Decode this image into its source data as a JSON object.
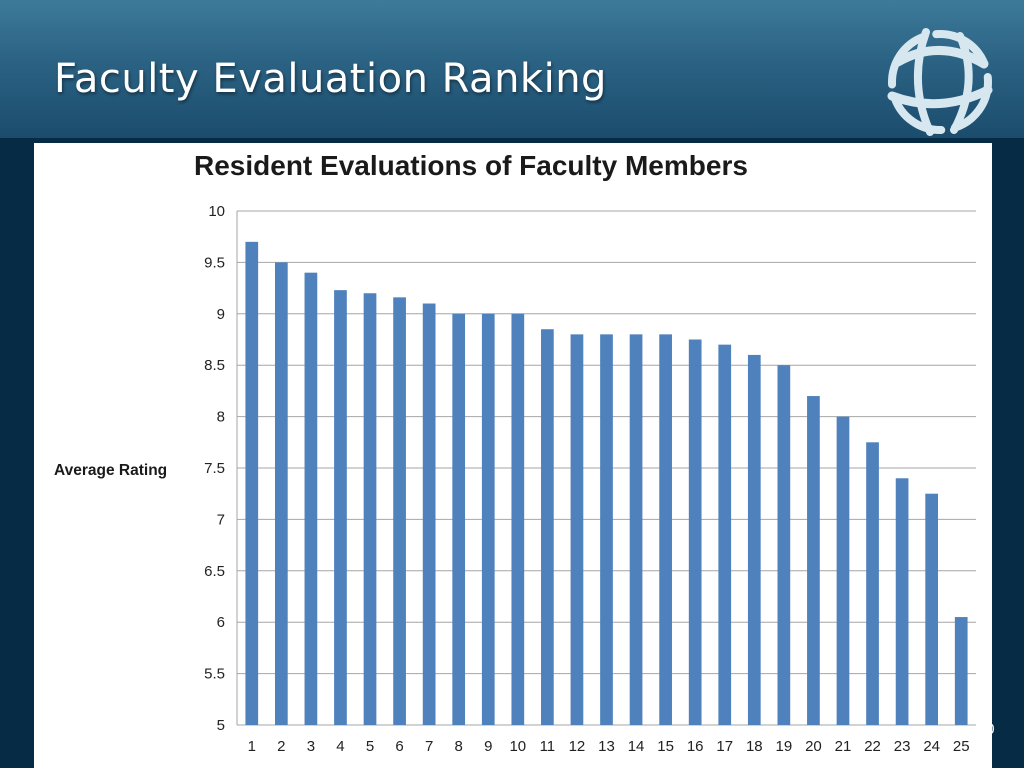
{
  "slide": {
    "title": "Faculty Evaluation Ranking",
    "logo_icon": "globe-logo-icon"
  },
  "colors": {
    "header_top": "#3d7a9a",
    "header_bottom": "#1b4c6d",
    "band": "#062c45",
    "bar": "#4f81bd",
    "gridline": "#a6a6a6"
  },
  "chart_data": {
    "type": "bar",
    "title": "Resident Evaluations of Faculty Members",
    "xlabel": "",
    "ylabel": "Average Rating",
    "ylim": [
      5,
      10
    ],
    "yticks": [
      5,
      5.5,
      6,
      6.5,
      7,
      7.5,
      8,
      8.5,
      9,
      9.5,
      10
    ],
    "ytick_labels": [
      "5",
      "5.5",
      "6",
      "6.5",
      "7",
      "7.5",
      "8",
      "8.5",
      "9",
      "9.5",
      "10"
    ],
    "grid": true,
    "legend": "none",
    "categories": [
      "1",
      "2",
      "3",
      "4",
      "5",
      "6",
      "7",
      "8",
      "9",
      "10",
      "11",
      "12",
      "13",
      "14",
      "15",
      "16",
      "17",
      "18",
      "19",
      "20",
      "21",
      "22",
      "23",
      "24",
      "25"
    ],
    "values": [
      9.7,
      9.5,
      9.4,
      9.23,
      9.2,
      9.16,
      9.1,
      9.0,
      9.0,
      9.0,
      8.85,
      8.8,
      8.8,
      8.8,
      8.8,
      8.75,
      8.7,
      8.6,
      8.5,
      8.2,
      8.0,
      7.75,
      7.4,
      7.25,
      6.05
    ]
  }
}
